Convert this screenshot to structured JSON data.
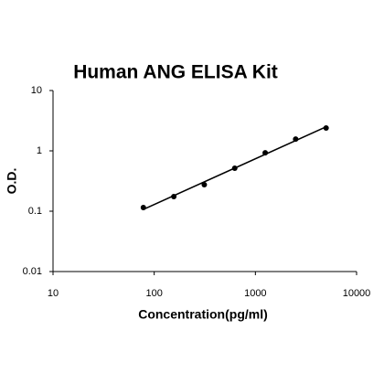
{
  "chart_data": {
    "type": "scatter",
    "title": "Human ANG ELISA Kit",
    "x_label": "Concentration(pg/ml)",
    "y_label": "O.D.",
    "x": [
      78.125,
      156.25,
      312.5,
      625,
      1250,
      2500,
      5000
    ],
    "values": [
      0.115,
      0.175,
      0.275,
      0.515,
      0.93,
      1.57,
      2.39
    ],
    "color": "#000000",
    "fit_line": true,
    "xlog": true,
    "ylog": true,
    "xlim": [
      10,
      10000
    ],
    "xticks": [
      10,
      100,
      1000,
      10000
    ],
    "ylim": [
      0.01,
      10
    ],
    "yticks": [
      0.01,
      0.1,
      1,
      10
    ]
  }
}
